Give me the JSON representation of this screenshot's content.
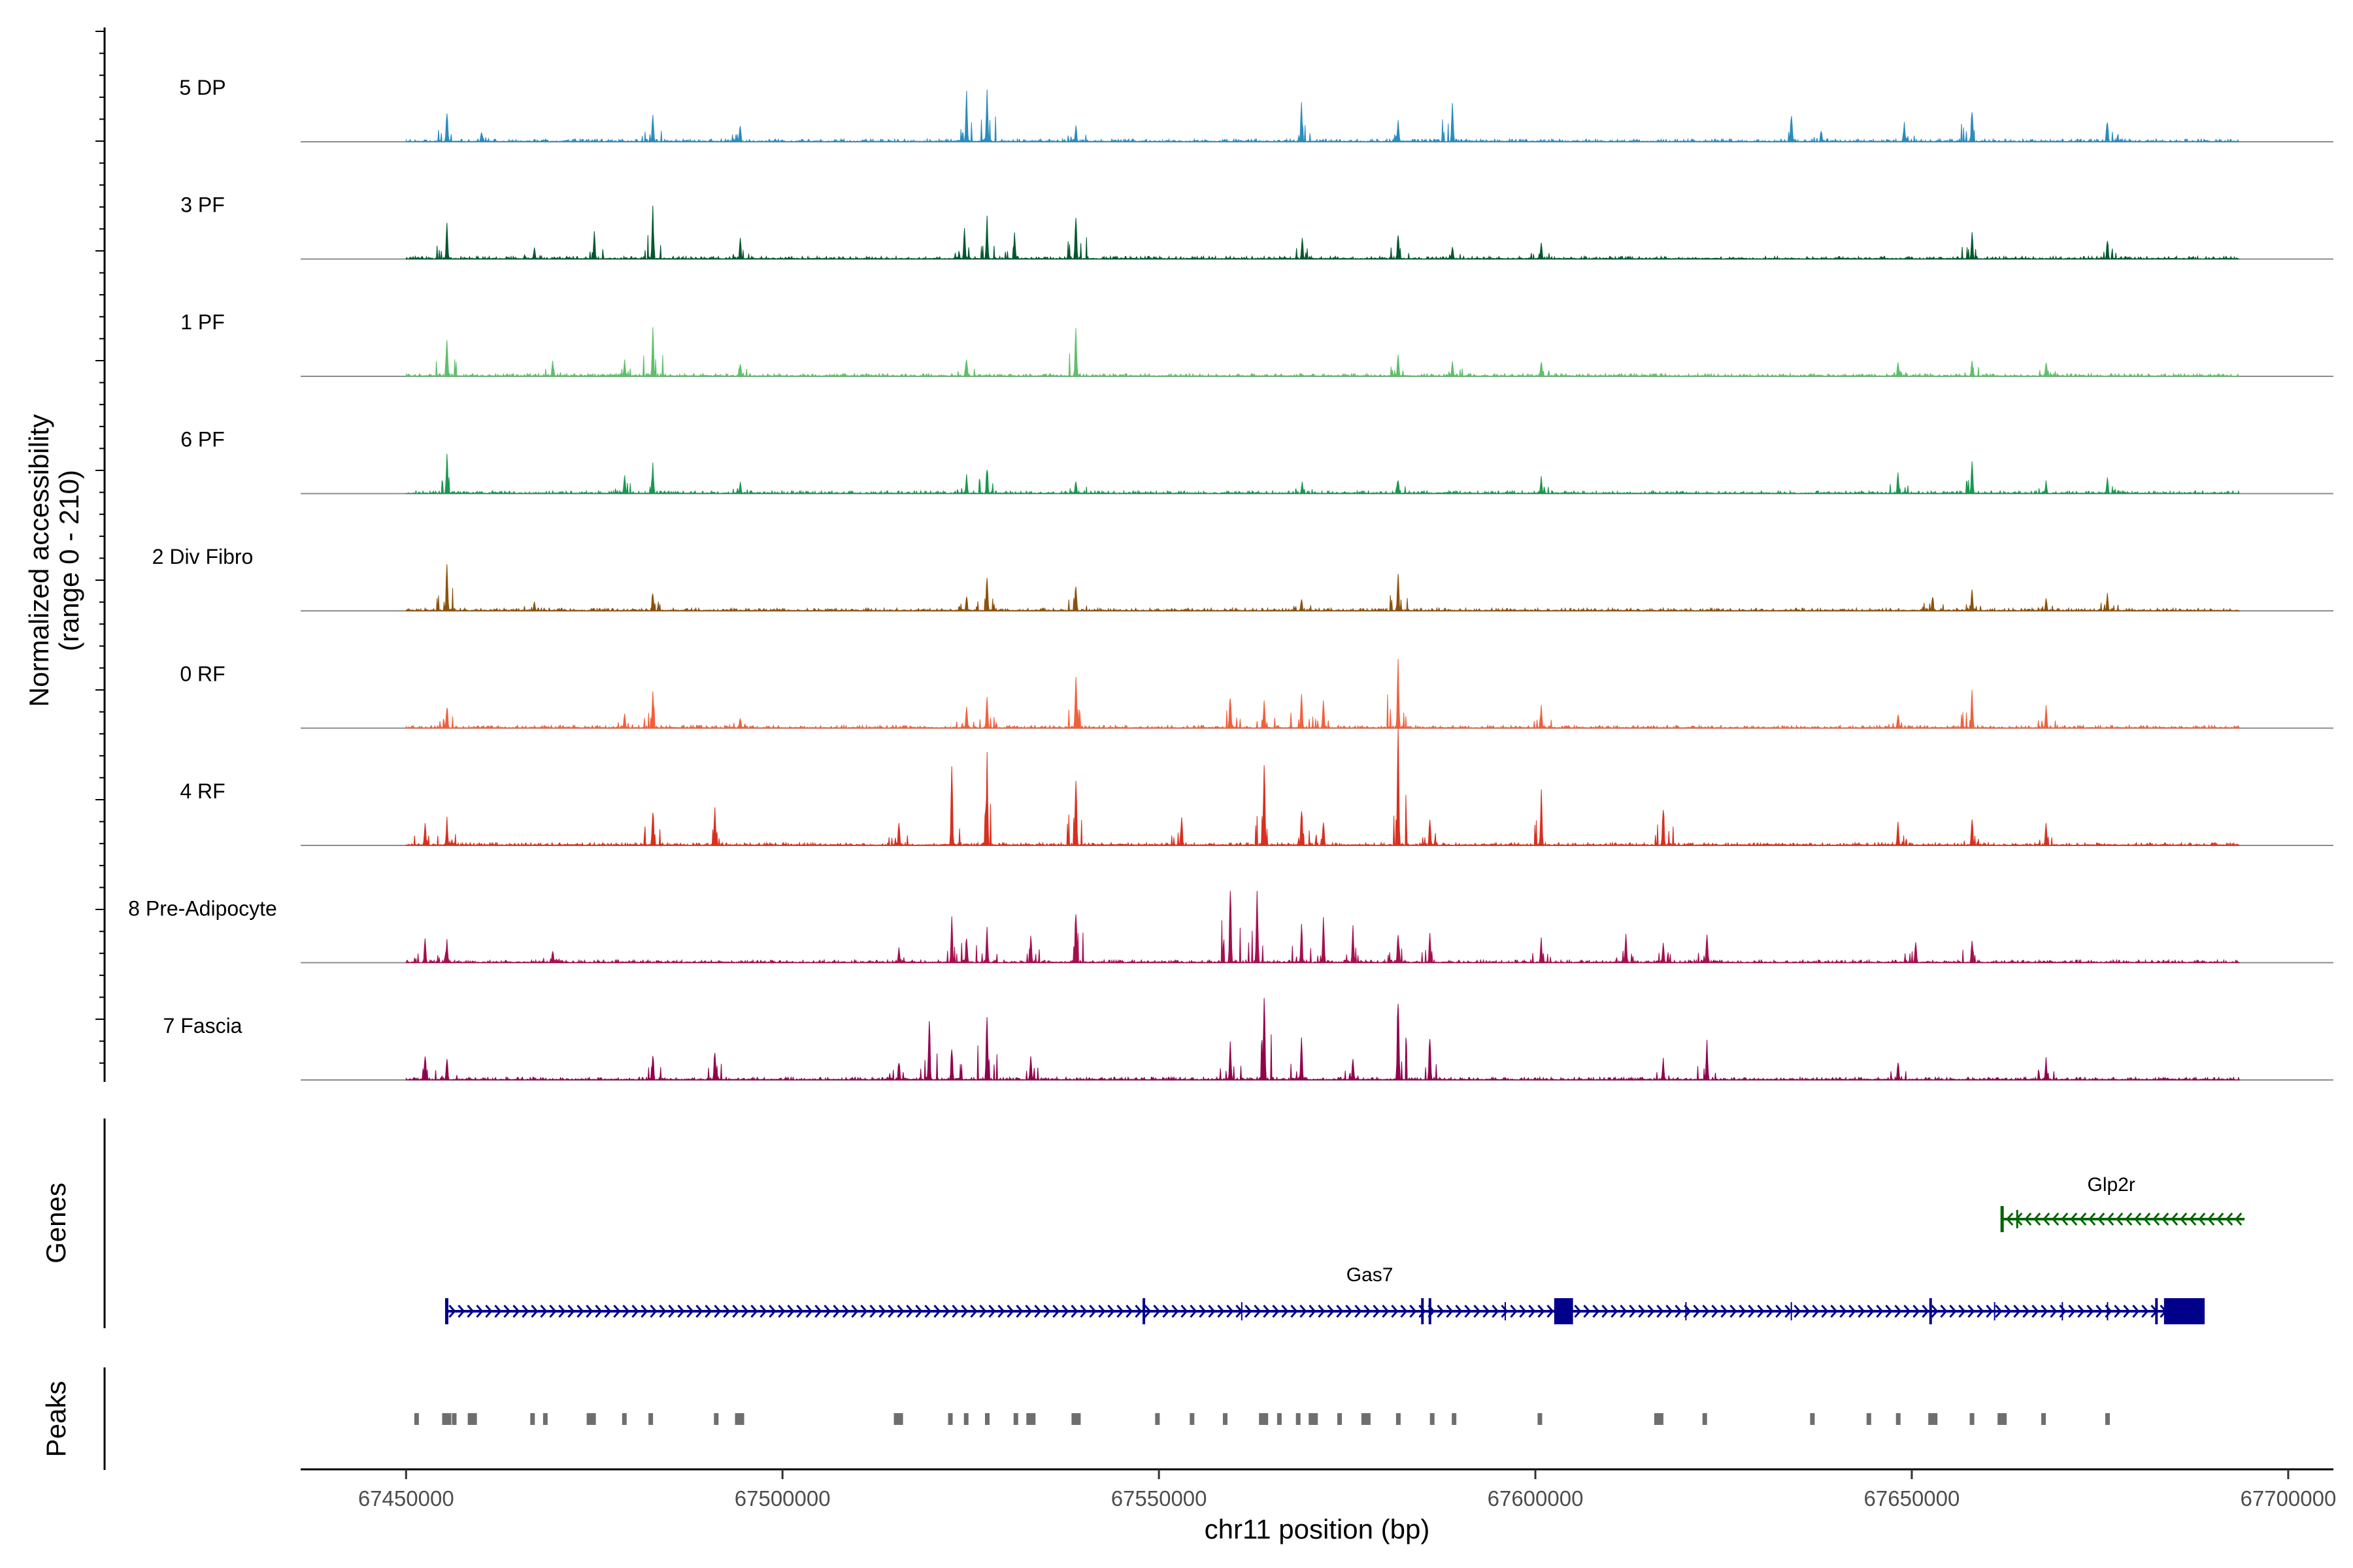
{
  "chart_data": {
    "type": "area",
    "title": "",
    "ylabel": "Normalized accessibility",
    "ylabel_range": "(range 0 - 210)",
    "xlabel": "chr11 position (bp)",
    "xlim": [
      67436000,
      67706000
    ],
    "x_ticks": [
      67450000,
      67500000,
      67550000,
      67600000,
      67650000,
      67700000
    ],
    "x_tick_labels": [
      "67450000",
      "67500000",
      "67550000",
      "67600000",
      "67650000",
      "67700000"
    ],
    "ylim": [
      0,
      210
    ],
    "series": [
      {
        "name": "5 DP",
        "color": "#2b8cbe",
        "peaks": [
          [
            67455400,
            48
          ],
          [
            67460000,
            14
          ],
          [
            67482800,
            37
          ],
          [
            67494400,
            25
          ],
          [
            67524500,
            63
          ],
          [
            67527200,
            70
          ],
          [
            67539000,
            20
          ],
          [
            67568900,
            50
          ],
          [
            67581800,
            33
          ],
          [
            67589000,
            61
          ],
          [
            67634000,
            40
          ],
          [
            67638000,
            16
          ],
          [
            67649000,
            25
          ],
          [
            67658000,
            49
          ],
          [
            67676000,
            33
          ]
        ]
      },
      {
        "name": "3 PF",
        "color": "#00582e",
        "peaks": [
          [
            67455400,
            47
          ],
          [
            67467000,
            16
          ],
          [
            67475000,
            34
          ],
          [
            67482800,
            66
          ],
          [
            67494400,
            26
          ],
          [
            67524200,
            40
          ],
          [
            67527200,
            55
          ],
          [
            67530800,
            34
          ],
          [
            67539000,
            62
          ],
          [
            67569000,
            30
          ],
          [
            67581800,
            36
          ],
          [
            67589000,
            18
          ],
          [
            67600800,
            25
          ],
          [
            67658000,
            36
          ],
          [
            67676000,
            30
          ]
        ]
      },
      {
        "name": "1 PF",
        "color": "#5fbf6a",
        "peaks": [
          [
            67455400,
            55
          ],
          [
            67469500,
            22
          ],
          [
            67479000,
            22
          ],
          [
            67482800,
            61
          ],
          [
            67494400,
            21
          ],
          [
            67524500,
            28
          ],
          [
            67539000,
            66
          ],
          [
            67581800,
            30
          ],
          [
            67589000,
            22
          ],
          [
            67600800,
            22
          ],
          [
            67648200,
            20
          ],
          [
            67658000,
            26
          ],
          [
            67667800,
            21
          ]
        ]
      },
      {
        "name": "6 PF",
        "color": "#1a9850",
        "peaks": [
          [
            67455400,
            52
          ],
          [
            67479000,
            30
          ],
          [
            67482800,
            42
          ],
          [
            67494400,
            15
          ],
          [
            67524500,
            24
          ],
          [
            67527200,
            40
          ],
          [
            67539000,
            20
          ],
          [
            67569000,
            15
          ],
          [
            67581800,
            22
          ],
          [
            67600800,
            22
          ],
          [
            67648200,
            30
          ],
          [
            67658000,
            51
          ],
          [
            67667800,
            17
          ],
          [
            67676000,
            24
          ]
        ]
      },
      {
        "name": "2 Div Fibro",
        "color": "#8c510a",
        "peaks": [
          [
            67455400,
            68
          ],
          [
            67467000,
            13
          ],
          [
            67482800,
            28
          ],
          [
            67524500,
            22
          ],
          [
            67527200,
            55
          ],
          [
            67539000,
            38
          ],
          [
            67568900,
            16
          ],
          [
            67581800,
            49
          ],
          [
            67652800,
            23
          ],
          [
            67658000,
            30
          ],
          [
            67667800,
            18
          ],
          [
            67676000,
            24
          ]
        ]
      },
      {
        "name": "0 RF",
        "color": "#f0603c",
        "peaks": [
          [
            67455400,
            34
          ],
          [
            67479000,
            19
          ],
          [
            67482800,
            52
          ],
          [
            67494400,
            16
          ],
          [
            67524500,
            28
          ],
          [
            67527200,
            42
          ],
          [
            67539000,
            73
          ],
          [
            67559500,
            50
          ],
          [
            67564000,
            34
          ],
          [
            67568900,
            43
          ],
          [
            67571800,
            35
          ],
          [
            67581800,
            96
          ],
          [
            67600800,
            31
          ],
          [
            67648200,
            20
          ],
          [
            67658000,
            52
          ],
          [
            67667800,
            30
          ]
        ]
      },
      {
        "name": "4 RF",
        "color": "#d7301f",
        "peaks": [
          [
            67452500,
            30
          ],
          [
            67455400,
            36
          ],
          [
            67482800,
            55
          ],
          [
            67491000,
            55
          ],
          [
            67515500,
            30
          ],
          [
            67522500,
            100
          ],
          [
            67527200,
            115
          ],
          [
            67539000,
            95
          ],
          [
            67553000,
            36
          ],
          [
            67564000,
            117
          ],
          [
            67568900,
            54
          ],
          [
            67571800,
            38
          ],
          [
            67581800,
            148
          ],
          [
            67586000,
            36
          ],
          [
            67600800,
            72
          ],
          [
            67617000,
            58
          ],
          [
            67648200,
            30
          ],
          [
            67658000,
            38
          ],
          [
            67667800,
            30
          ]
        ]
      },
      {
        "name": "8 Pre-Adipocyte",
        "color": "#a50f4e",
        "peaks": [
          [
            67452500,
            32
          ],
          [
            67455400,
            30
          ],
          [
            67469500,
            18
          ],
          [
            67515500,
            20
          ],
          [
            67522500,
            58
          ],
          [
            67524500,
            40
          ],
          [
            67527200,
            48
          ],
          [
            67533000,
            40
          ],
          [
            67539000,
            84
          ],
          [
            67559500,
            120
          ],
          [
            67563000,
            106
          ],
          [
            67568900,
            50
          ],
          [
            67571800,
            57
          ],
          [
            67575800,
            50
          ],
          [
            67581800,
            40
          ],
          [
            67586000,
            37
          ],
          [
            67600800,
            32
          ],
          [
            67612000,
            36
          ],
          [
            67617000,
            30
          ],
          [
            67622800,
            44
          ],
          [
            67650500,
            32
          ],
          [
            67658000,
            36
          ]
        ]
      },
      {
        "name": "7 Fascia",
        "color": "#91004e",
        "peaks": [
          [
            67452500,
            36
          ],
          [
            67455400,
            32
          ],
          [
            67482800,
            37
          ],
          [
            67491000,
            46
          ],
          [
            67515500,
            28
          ],
          [
            67519500,
            88
          ],
          [
            67522500,
            52
          ],
          [
            67527200,
            101
          ],
          [
            67533000,
            36
          ],
          [
            67559500,
            52
          ],
          [
            67564000,
            125
          ],
          [
            67568900,
            58
          ],
          [
            67575800,
            30
          ],
          [
            67581800,
            130
          ],
          [
            67586000,
            63
          ],
          [
            67617000,
            30
          ],
          [
            67622800,
            58
          ],
          [
            67648200,
            26
          ],
          [
            67667800,
            28
          ]
        ]
      }
    ],
    "genes": [
      {
        "name": "Gas7",
        "start": 67455400,
        "end": 67688900,
        "strand": "+",
        "color": "#00008b"
      },
      {
        "name": "Glp2r",
        "start": 67662000,
        "end": 67694200,
        "strand": "-",
        "color": "#006400"
      }
    ],
    "peaks_track": [
      67451400,
      67455400,
      67456400,
      67458800,
      67466800,
      67468500,
      67474600,
      67479000,
      67482500,
      67491200,
      67494300,
      67515400,
      67522300,
      67524400,
      67527200,
      67531000,
      67533000,
      67539000,
      67549800,
      67554400,
      67558800,
      67563900,
      67566000,
      67568500,
      67570500,
      67574000,
      67577500,
      67581800,
      67586300,
      67589200,
      67600600,
      67616400,
      67622500,
      67636800,
      67644300,
      67648200,
      67652800,
      67658000,
      67662000,
      67667500,
      67676000
    ],
    "track_labels": {
      "genes": "Genes",
      "peaks": "Peaks"
    }
  }
}
